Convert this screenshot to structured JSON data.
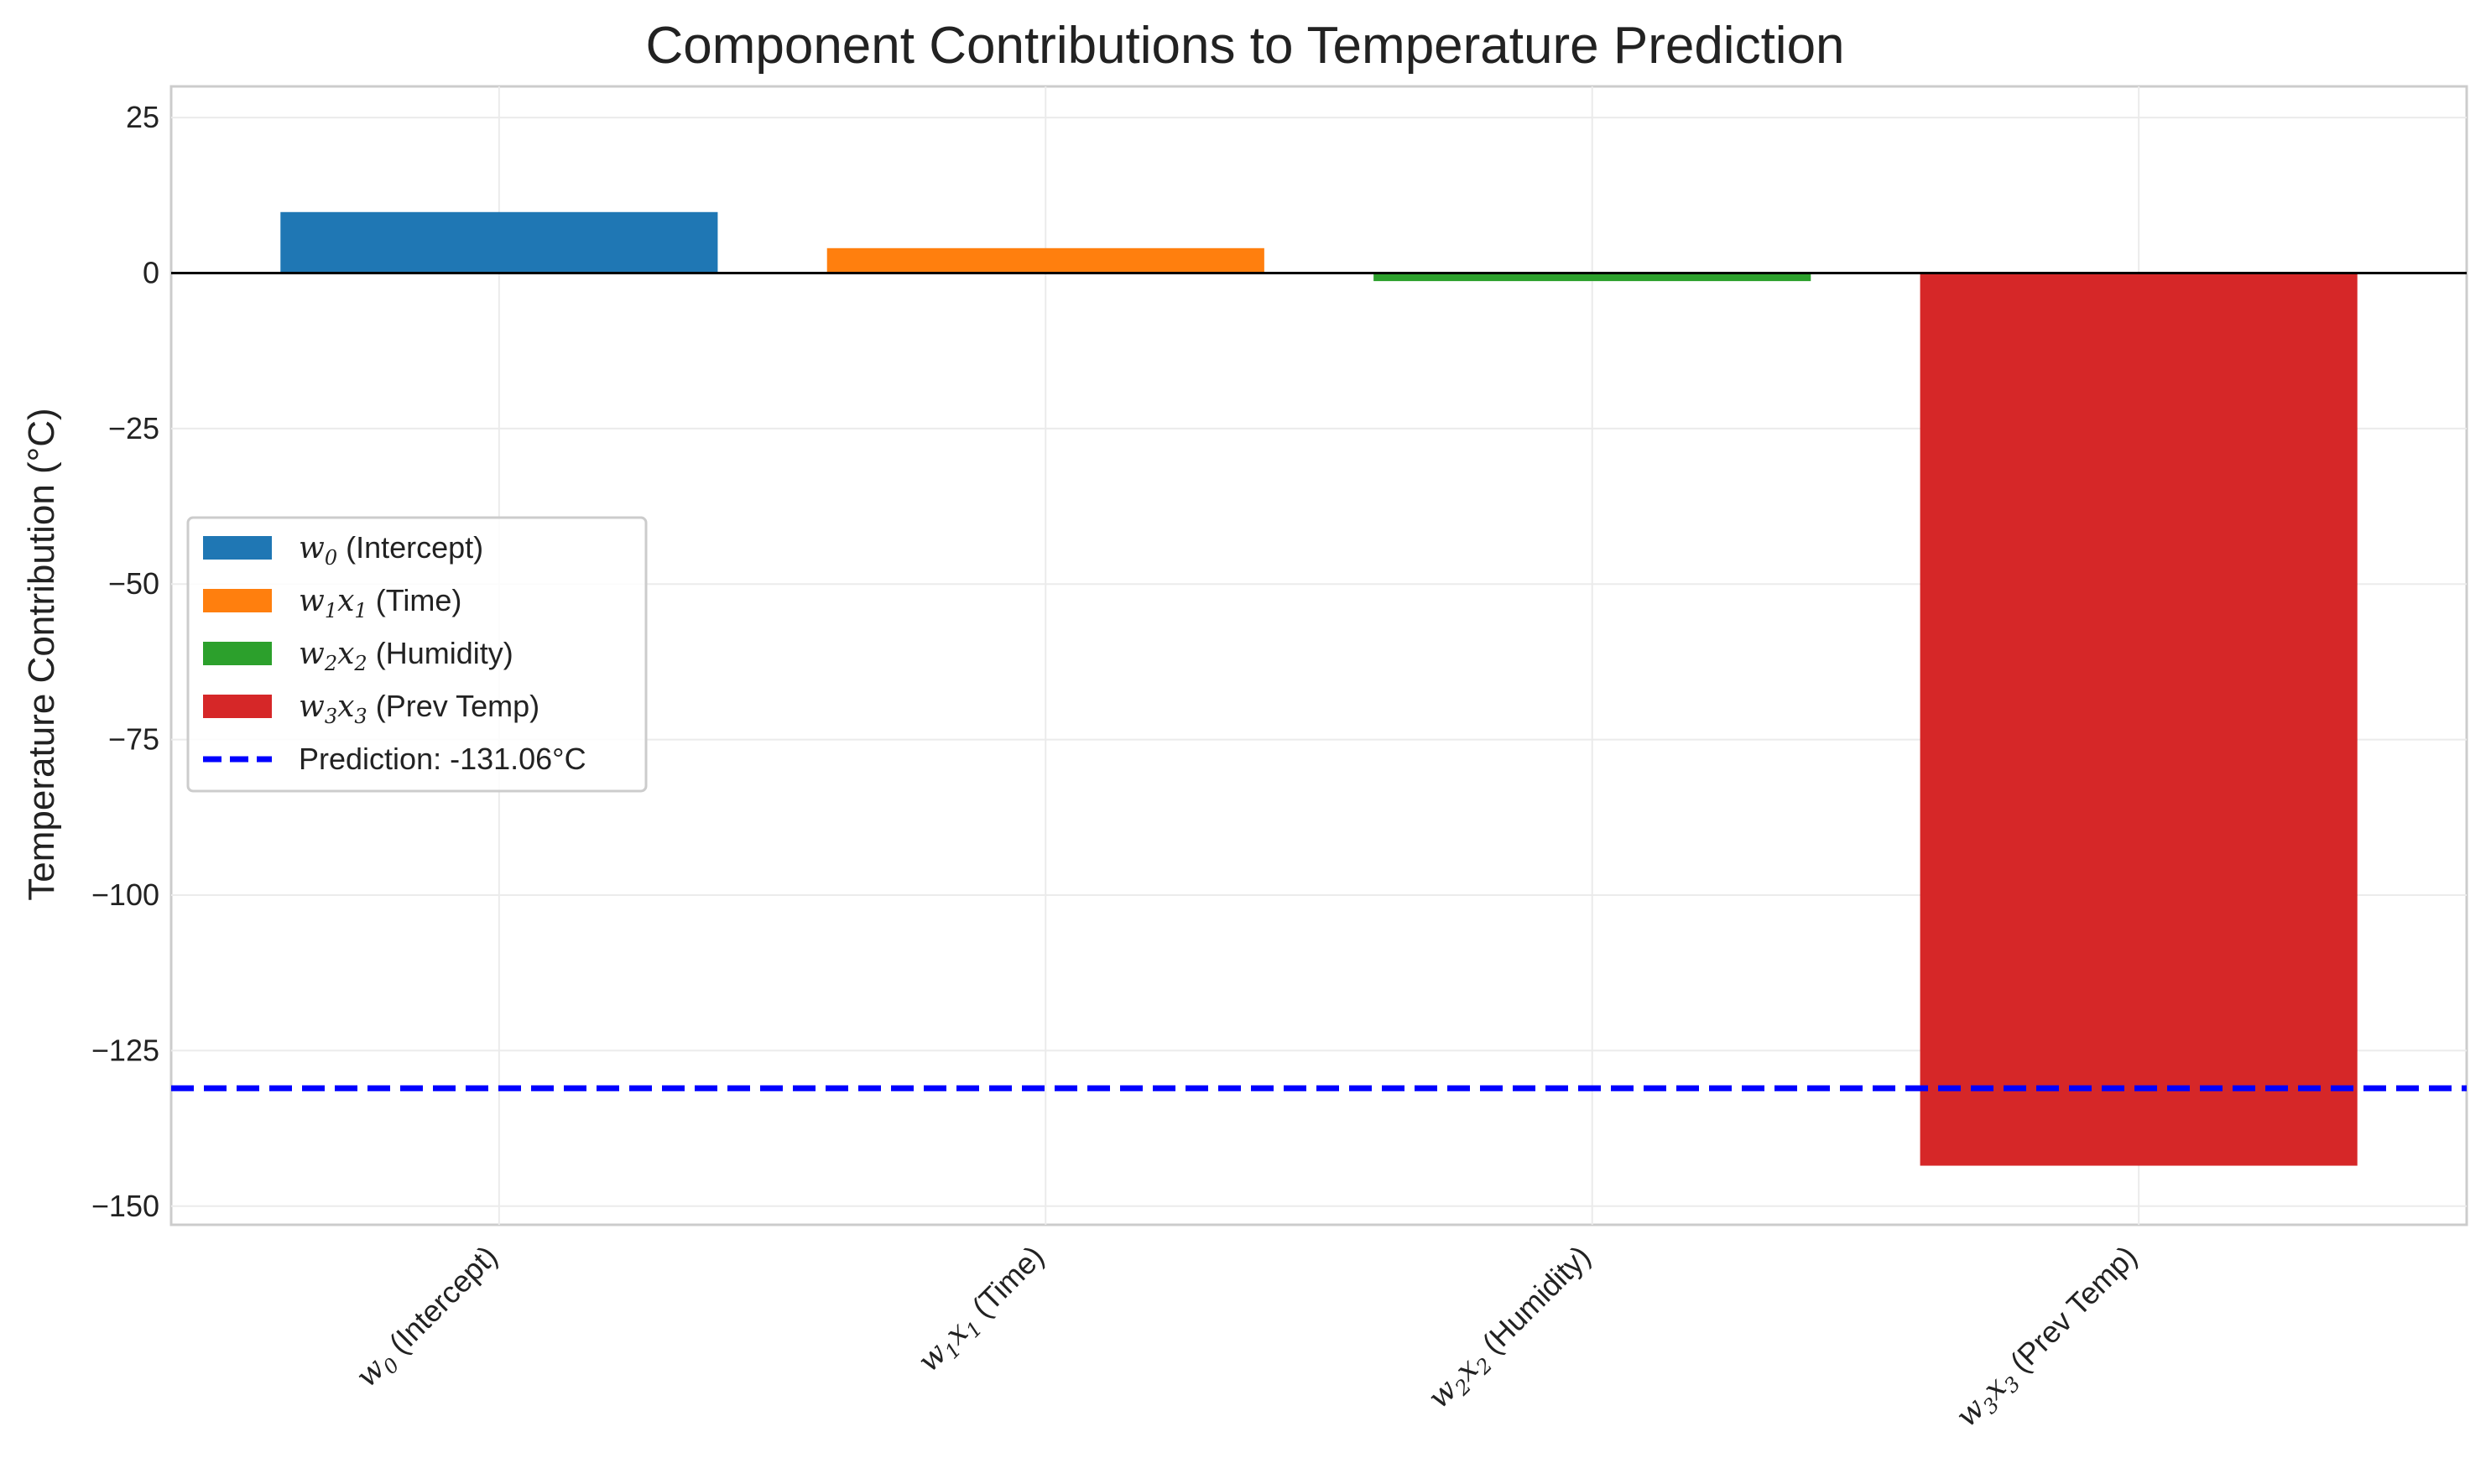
{
  "chart_data": {
    "type": "bar",
    "title": "Component Contributions to Temperature Prediction",
    "xlabel": "",
    "ylabel": "Temperature Contribution (°C)",
    "ylim": [
      -153,
      30
    ],
    "yticks": [
      25,
      0,
      -25,
      -50,
      -75,
      -100,
      -125,
      -150
    ],
    "ytick_labels": [
      "25",
      "0",
      "−25",
      "−50",
      "−75",
      "−100",
      "−125",
      "−150"
    ],
    "grid": true,
    "legend_position": "center-left",
    "categories": [
      {
        "var": "w",
        "sub1": "0",
        "var2": "",
        "sub2": "",
        "text": " (Intercept)"
      },
      {
        "var": "w",
        "sub1": "1",
        "var2": "x",
        "sub2": "1",
        "text": " (Time)"
      },
      {
        "var": "w",
        "sub1": "2",
        "var2": "x",
        "sub2": "2",
        "text": " (Humidity)"
      },
      {
        "var": "w",
        "sub1": "3",
        "var2": "x",
        "sub2": "3",
        "text": " (Prev Temp)"
      }
    ],
    "values": [
      9.8,
      4.0,
      -1.3,
      -143.5
    ],
    "colors": [
      "#1f77b4",
      "#ff7f0e",
      "#2ca02c",
      "#d62728"
    ],
    "reference_line": {
      "value": -131.06,
      "label": "Prediction: -131.06°C",
      "color": "#0000ff",
      "style": "dashed"
    },
    "zero_line_color": "#000000"
  }
}
